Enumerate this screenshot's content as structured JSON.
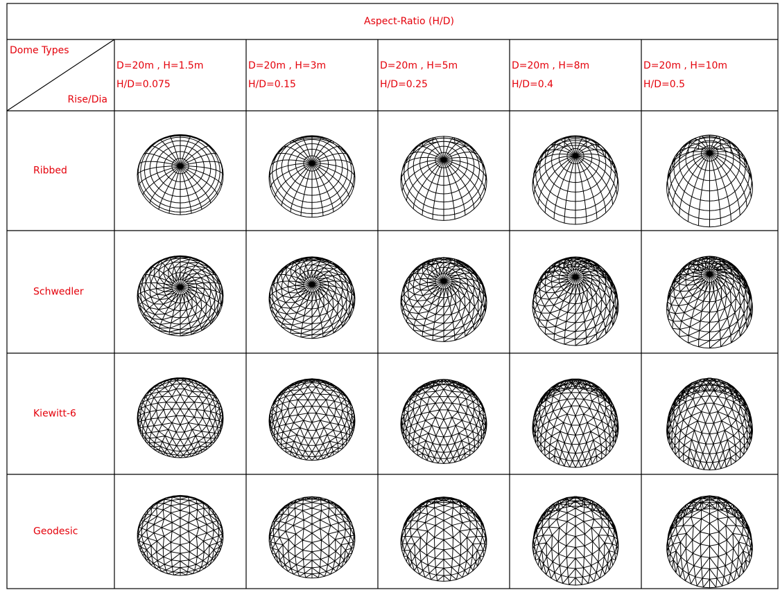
{
  "header": {
    "title": "Aspect-Ratio (H/D)",
    "corner": {
      "top": "Dome Types",
      "bottom": "Rise/Dia"
    },
    "columns": [
      {
        "line1": "D=20m , H=1.5m",
        "line2": "H/D=0.075"
      },
      {
        "line1": "D=20m , H=3m",
        "line2": "H/D=0.15"
      },
      {
        "line1": "D=20m , H=5m",
        "line2": "H/D=0.25"
      },
      {
        "line1": "D=20m , H=8m",
        "line2": "H/D=0.4"
      },
      {
        "line1": "D=20m , H=10m",
        "line2": "H/D=0.5"
      }
    ]
  },
  "rows": [
    "Ribbed",
    "Schwedler",
    "Kiewitt-6",
    "Geodesic"
  ]
}
